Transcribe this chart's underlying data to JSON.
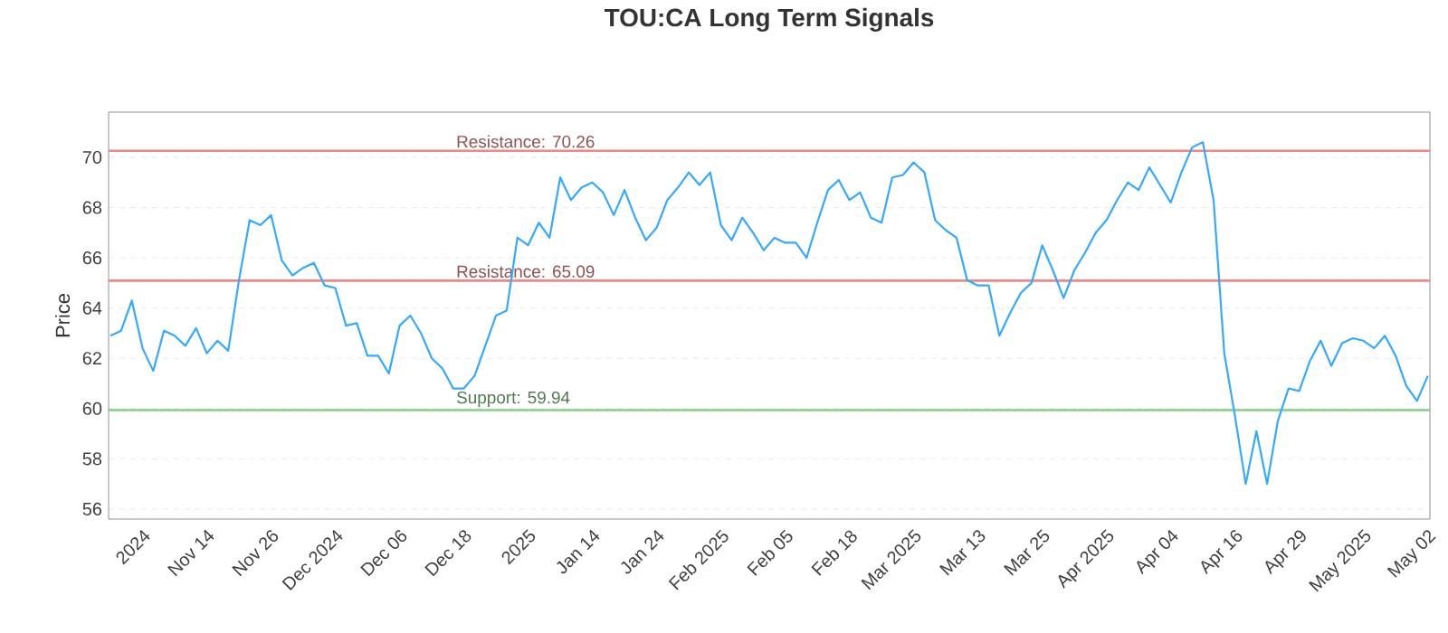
{
  "chart_data": {
    "type": "line",
    "title": "TOU:CA Long Term Signals",
    "ylabel": "Price",
    "categories": [
      null,
      null,
      null,
      "2024",
      null,
      null,
      null,
      null,
      null,
      "Nov 14",
      null,
      null,
      null,
      null,
      null,
      "Nov 26",
      null,
      null,
      null,
      null,
      null,
      "Dec 2024",
      null,
      null,
      null,
      null,
      null,
      "Dec 06",
      null,
      null,
      null,
      null,
      null,
      "Dec 18",
      null,
      null,
      null,
      null,
      null,
      "2025",
      null,
      null,
      null,
      null,
      null,
      "Jan 14",
      null,
      null,
      null,
      null,
      null,
      "Jan 24",
      null,
      null,
      null,
      null,
      null,
      "Feb 2025",
      null,
      null,
      null,
      null,
      null,
      "Feb 05",
      null,
      null,
      null,
      null,
      null,
      "Feb 18",
      null,
      null,
      null,
      null,
      null,
      "Mar 2025",
      null,
      null,
      null,
      null,
      null,
      "Mar 13",
      null,
      null,
      null,
      null,
      null,
      "Mar 25",
      null,
      null,
      null,
      null,
      null,
      "Apr 2025",
      null,
      null,
      null,
      null,
      null,
      "Apr 04",
      null,
      null,
      null,
      null,
      null,
      "Apr 16",
      null,
      null,
      null,
      null,
      null,
      "Apr 29",
      null,
      null,
      null,
      null,
      null,
      "May 2025",
      null,
      null,
      null,
      null,
      null,
      "May 02"
    ],
    "values": [
      62.9,
      63.1,
      64.3,
      62.4,
      61.5,
      63.1,
      62.9,
      62.5,
      63.2,
      62.2,
      62.7,
      62.3,
      65.1,
      67.5,
      67.3,
      67.7,
      65.9,
      65.3,
      65.6,
      65.8,
      64.9,
      64.8,
      63.3,
      63.4,
      62.1,
      62.1,
      61.4,
      63.3,
      63.7,
      63.0,
      62.0,
      61.6,
      60.8,
      60.8,
      61.3,
      62.5,
      63.7,
      63.9,
      66.8,
      66.5,
      67.4,
      66.8,
      69.2,
      68.3,
      68.8,
      69.0,
      68.6,
      67.7,
      68.7,
      67.6,
      66.7,
      67.2,
      68.3,
      68.8,
      69.4,
      68.9,
      69.4,
      67.3,
      66.7,
      67.6,
      67.0,
      66.3,
      66.8,
      66.6,
      66.6,
      66.0,
      67.4,
      68.7,
      69.1,
      68.3,
      68.6,
      67.6,
      67.4,
      69.2,
      69.3,
      69.8,
      69.4,
      67.5,
      67.1,
      66.8,
      65.1,
      64.9,
      64.9,
      62.9,
      63.8,
      64.6,
      65.0,
      66.5,
      65.5,
      64.4,
      65.5,
      66.2,
      67.0,
      67.5,
      68.3,
      69.0,
      68.7,
      69.6,
      68.9,
      68.2,
      69.4,
      70.4,
      70.6,
      68.3,
      62.2,
      59.7,
      57.0,
      59.1,
      57.0,
      59.5,
      60.8,
      60.7,
      61.9,
      62.7,
      61.7,
      62.6,
      62.8,
      62.7,
      62.4,
      62.9,
      62.1,
      60.9,
      60.3,
      61.3
    ],
    "color": "#33aaff",
    "ylim": [
      55.6,
      71.8
    ],
    "yticks": [
      56,
      58,
      60,
      62,
      64,
      66,
      68,
      70
    ],
    "grid": "y",
    "ref_lines": [
      {
        "axis": "y",
        "value": 70.26,
        "label": "Resistance: 70.26",
        "color": "#ee8888"
      },
      {
        "axis": "y",
        "value": 65.09,
        "label": "Resistance: 65.09",
        "color": "#ee8888"
      },
      {
        "axis": "y",
        "value": 59.94,
        "label": "Support: 59.94",
        "color": "#88cc88"
      }
    ]
  }
}
